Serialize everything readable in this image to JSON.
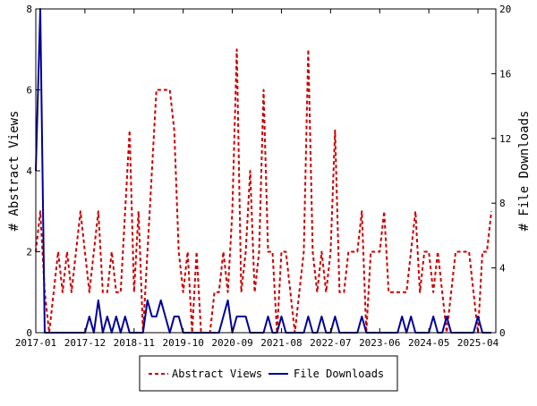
{
  "chart_data": {
    "type": "line",
    "title": "",
    "x_tick_labels": [
      "2017-01",
      "2017-12",
      "2018-11",
      "2019-10",
      "2020-09",
      "2021-08",
      "2022-07",
      "2023-06",
      "2024-05",
      "2025-04"
    ],
    "x_tick_index": [
      0,
      11,
      22,
      33,
      44,
      55,
      66,
      77,
      88,
      99
    ],
    "x_range": [
      0,
      103
    ],
    "y_left": {
      "label": "# Abstract Views",
      "range": [
        0,
        8
      ],
      "ticks": [
        "0",
        "2",
        "4",
        "6",
        "8"
      ]
    },
    "y_right": {
      "label": "# File Downloads",
      "range": [
        0,
        20
      ],
      "ticks": [
        "0",
        "4",
        "8",
        "12",
        "16",
        "20"
      ]
    },
    "legend_position": "bottom-center",
    "grid": false,
    "series": [
      {
        "name": "Abstract Views",
        "axis": "left",
        "color": "#cc0000",
        "dash": "dashed",
        "values": [
          2,
          3,
          1,
          0,
          1,
          2,
          1,
          2,
          1,
          2,
          3,
          2,
          1,
          2,
          3,
          1,
          1,
          2,
          1,
          1,
          3,
          5,
          1,
          3,
          0,
          2,
          4,
          6,
          6,
          6,
          6,
          5,
          2,
          1,
          2,
          0,
          2,
          0,
          0,
          0,
          1,
          1,
          2,
          1,
          3,
          7,
          1,
          2,
          4,
          1,
          2,
          6,
          2,
          2,
          0,
          2,
          2,
          1,
          0,
          1,
          2,
          7,
          2,
          1,
          2,
          1,
          2,
          5,
          1,
          1,
          2,
          2,
          2,
          3,
          0,
          2,
          2,
          2,
          3,
          1,
          1,
          1,
          1,
          1,
          2,
          3,
          1,
          2,
          2,
          1,
          2,
          1,
          0,
          1,
          2,
          2,
          2,
          2,
          1,
          0,
          2,
          2,
          3
        ]
      },
      {
        "name": "File Downloads",
        "axis": "right",
        "color": "#000099",
        "dash": "solid",
        "values": [
          10,
          20,
          0,
          0,
          0,
          0,
          0,
          0,
          0,
          0,
          0,
          0,
          1,
          0,
          2,
          0,
          1,
          0,
          1,
          0,
          1,
          0,
          0,
          0,
          0,
          2,
          1,
          1,
          2,
          1,
          0,
          1,
          1,
          0,
          0,
          0,
          0,
          0,
          0,
          0,
          0,
          0,
          1,
          2,
          0,
          1,
          1,
          1,
          0,
          0,
          0,
          0,
          1,
          0,
          0,
          1,
          0,
          0,
          0,
          0,
          0,
          1,
          0,
          0,
          1,
          0,
          0,
          1,
          0,
          0,
          0,
          0,
          0,
          1,
          0,
          0,
          0,
          0,
          0,
          0,
          0,
          0,
          1,
          0,
          1,
          0,
          0,
          0,
          0,
          1,
          0,
          0,
          1,
          0,
          0,
          0,
          0,
          0,
          0,
          1,
          0,
          0,
          0
        ]
      }
    ]
  }
}
